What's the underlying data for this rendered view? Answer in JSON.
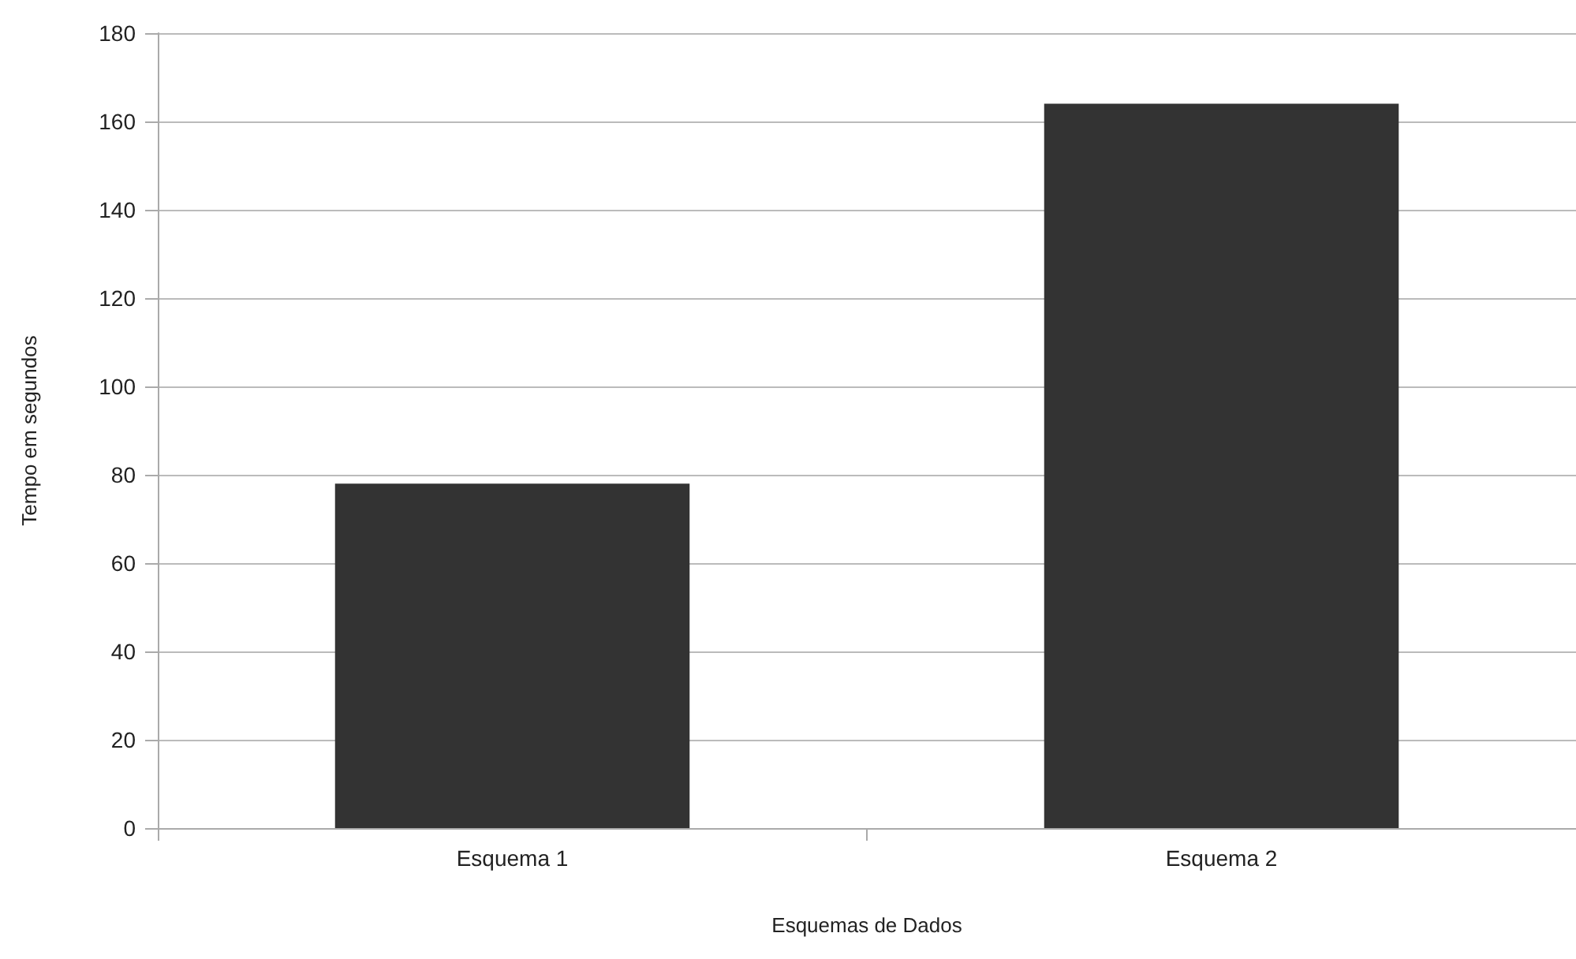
{
  "chart_data": {
    "type": "bar",
    "xlabel": "Esquemas de Dados",
    "ylabel": "Tempo em segundos",
    "categories": [
      "Esquema 1",
      "Esquema 2"
    ],
    "values": [
      78,
      164
    ],
    "color": "#333333",
    "ylim": [
      0,
      180
    ],
    "yticks": [
      0,
      20,
      40,
      60,
      80,
      100,
      120,
      140,
      160,
      180
    ],
    "grid": "y"
  }
}
